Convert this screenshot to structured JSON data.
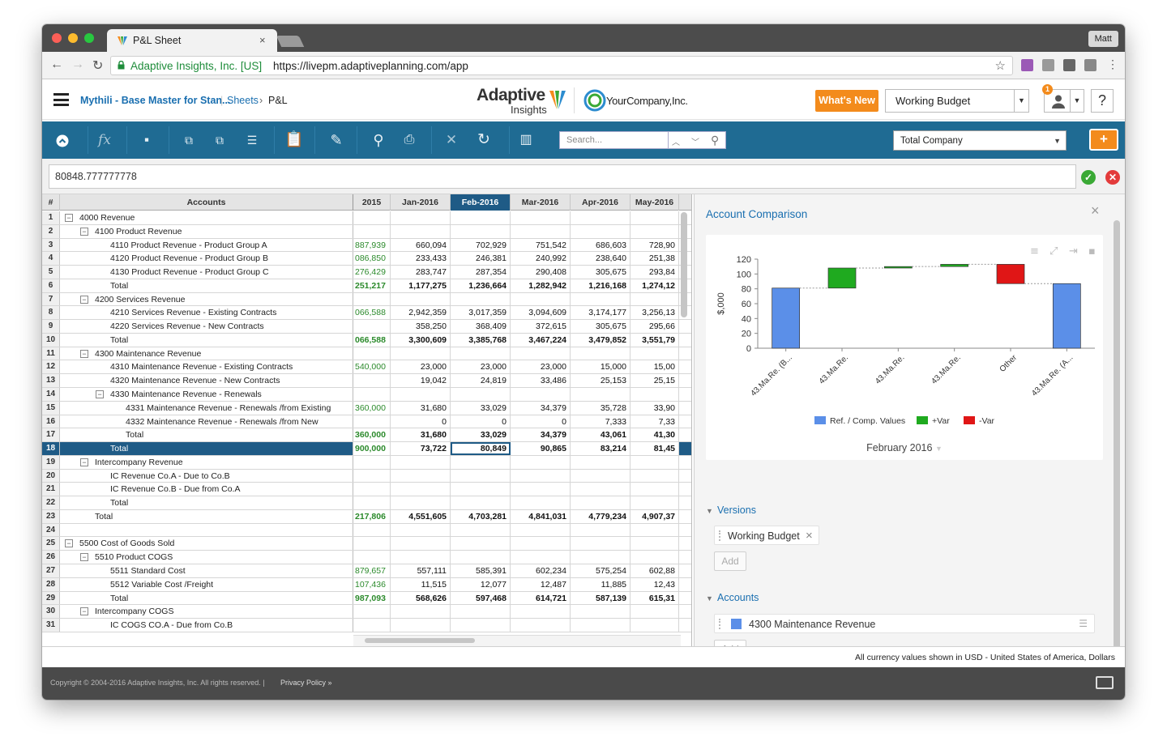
{
  "browser": {
    "tab_title": "P&L Sheet",
    "tab_close": "×",
    "user_button": "Matt",
    "secure_label": "Adaptive Insights, Inc. [US]",
    "url": "https://livepm.adaptiveplanning.com/app"
  },
  "header": {
    "breadcrumb": {
      "model": "Mythili - Base Master for Stan...",
      "sheets": "Sheets",
      "separator": "›",
      "current": "P&L"
    },
    "logo_primary": "Adaptive",
    "logo_secondary": "Insights",
    "company_logo": "YourCompany,Inc.",
    "whats_new": "What's New",
    "version": "Working Budget",
    "notification_count": "1",
    "help": "?"
  },
  "toolbar": {
    "icons": [
      "collapse-icon",
      "formula-icon",
      "save-icon",
      "copy-icon",
      "paste-icon",
      "indent-icon",
      "clipboard-icon",
      "sheet-edit-icon",
      "zoom-icon",
      "print-icon",
      "close-icon",
      "refresh-icon",
      "chart-icon"
    ],
    "search_placeholder": "Search...",
    "entity": "Total Company",
    "add": "+"
  },
  "formula_bar": {
    "value": "80848.777777778",
    "ok": "✓",
    "cancel": "✕"
  },
  "grid": {
    "row_number_header": "#",
    "accounts_header": "Accounts",
    "columns": [
      "2015",
      "Jan-2016",
      "Feb-2016",
      "Mar-2016",
      "Apr-2016",
      "May-2016"
    ],
    "selected_column": "Feb-2016",
    "rows": [
      {
        "n": "1",
        "level": 0,
        "toggle": "−",
        "label": "4000 Revenue",
        "values": [
          "",
          "",
          "",
          "",
          "",
          ""
        ]
      },
      {
        "n": "2",
        "level": 1,
        "toggle": "−",
        "label": "4100 Product Revenue",
        "values": [
          "",
          "",
          "",
          "",
          "",
          ""
        ]
      },
      {
        "n": "3",
        "level": 2,
        "label": "4110 Product Revenue - Product Group A",
        "values": [
          "887,939",
          "660,094",
          "702,929",
          "751,542",
          "686,603",
          "728,90"
        ]
      },
      {
        "n": "4",
        "level": 2,
        "label": "4120 Product Revenue - Product Group B",
        "values": [
          "086,850",
          "233,433",
          "246,381",
          "240,992",
          "238,640",
          "251,38"
        ]
      },
      {
        "n": "5",
        "level": 2,
        "label": "4130 Product Revenue - Product Group C",
        "values": [
          "276,429",
          "283,747",
          "287,354",
          "290,408",
          "305,675",
          "293,84"
        ]
      },
      {
        "n": "6",
        "level": 2,
        "total": true,
        "label": "Total",
        "values": [
          "251,217",
          "1,177,275",
          "1,236,664",
          "1,282,942",
          "1,216,168",
          "1,274,12"
        ]
      },
      {
        "n": "7",
        "level": 1,
        "toggle": "−",
        "label": "4200 Services Revenue",
        "values": [
          "",
          "",
          "",
          "",
          "",
          ""
        ]
      },
      {
        "n": "8",
        "level": 2,
        "label": "4210 Services Revenue - Existing Contracts",
        "values": [
          "066,588",
          "2,942,359",
          "3,017,359",
          "3,094,609",
          "3,174,177",
          "3,256,13"
        ]
      },
      {
        "n": "9",
        "level": 2,
        "label": "4220 Services Revenue - New Contracts",
        "values": [
          "",
          "358,250",
          "368,409",
          "372,615",
          "305,675",
          "295,66"
        ]
      },
      {
        "n": "10",
        "level": 2,
        "total": true,
        "label": "Total",
        "values": [
          "066,588",
          "3,300,609",
          "3,385,768",
          "3,467,224",
          "3,479,852",
          "3,551,79"
        ]
      },
      {
        "n": "11",
        "level": 1,
        "toggle": "−",
        "label": "4300 Maintenance Revenue",
        "values": [
          "",
          "",
          "",
          "",
          "",
          ""
        ]
      },
      {
        "n": "12",
        "level": 2,
        "label": "4310 Maintenance Revenue - Existing Contracts",
        "values": [
          "540,000",
          "23,000",
          "23,000",
          "23,000",
          "15,000",
          "15,00"
        ]
      },
      {
        "n": "13",
        "level": 2,
        "label": "4320 Maintenance Revenue - New Contracts",
        "values": [
          "",
          "19,042",
          "24,819",
          "33,486",
          "25,153",
          "25,15"
        ]
      },
      {
        "n": "14",
        "level": 2,
        "toggle": "−",
        "label": "4330 Maintenance Revenue - Renewals",
        "values": [
          "",
          "",
          "",
          "",
          "",
          ""
        ]
      },
      {
        "n": "15",
        "level": 3,
        "label": "4331 Maintenance Revenue - Renewals /from Existing",
        "values": [
          "360,000",
          "31,680",
          "33,029",
          "34,379",
          "35,728",
          "33,90"
        ]
      },
      {
        "n": "16",
        "level": 3,
        "label": "4332 Maintenance Revenue - Renewals /from New",
        "values": [
          "",
          "0",
          "0",
          "0",
          "7,333",
          "7,33"
        ]
      },
      {
        "n": "17",
        "level": 3,
        "total": true,
        "label": "Total",
        "values": [
          "360,000",
          "31,680",
          "33,029",
          "34,379",
          "43,061",
          "41,30"
        ]
      },
      {
        "n": "18",
        "level": 2,
        "total": true,
        "selected": true,
        "label": "Total",
        "values": [
          "900,000",
          "73,722",
          "80,849",
          "90,865",
          "83,214",
          "81,45"
        ]
      },
      {
        "n": "19",
        "level": 1,
        "toggle": "−",
        "label": "Intercompany Revenue",
        "values": [
          "",
          "",
          "",
          "",
          "",
          ""
        ]
      },
      {
        "n": "20",
        "level": 2,
        "label": "IC Revenue Co.A - Due to Co.B",
        "values": [
          "",
          "",
          "",
          "",
          "",
          ""
        ]
      },
      {
        "n": "21",
        "level": 2,
        "label": "IC Revenue Co.B - Due from Co.A",
        "values": [
          "",
          "",
          "",
          "",
          "",
          ""
        ]
      },
      {
        "n": "22",
        "level": 2,
        "total": true,
        "label": "Total",
        "values": [
          "",
          "",
          "",
          "",
          "",
          ""
        ]
      },
      {
        "n": "23",
        "level": 1,
        "total": true,
        "label": "Total",
        "values": [
          "217,806",
          "4,551,605",
          "4,703,281",
          "4,841,031",
          "4,779,234",
          "4,907,37"
        ]
      },
      {
        "n": "24",
        "level": 0,
        "label": "",
        "values": [
          "",
          "",
          "",
          "",
          "",
          ""
        ]
      },
      {
        "n": "25",
        "level": 0,
        "toggle": "−",
        "label": "5500 Cost of Goods Sold",
        "values": [
          "",
          "",
          "",
          "",
          "",
          ""
        ]
      },
      {
        "n": "26",
        "level": 1,
        "toggle": "−",
        "label": "5510 Product COGS",
        "values": [
          "",
          "",
          "",
          "",
          "",
          ""
        ]
      },
      {
        "n": "27",
        "level": 2,
        "label": "5511 Standard Cost",
        "values": [
          "879,657",
          "557,111",
          "585,391",
          "602,234",
          "575,254",
          "602,88"
        ]
      },
      {
        "n": "28",
        "level": 2,
        "label": "5512 Variable Cost /Freight",
        "values": [
          "107,436",
          "11,515",
          "12,077",
          "12,487",
          "11,885",
          "12,43"
        ]
      },
      {
        "n": "29",
        "level": 2,
        "total": true,
        "label": "Total",
        "values": [
          "987,093",
          "568,626",
          "597,468",
          "614,721",
          "587,139",
          "615,31"
        ]
      },
      {
        "n": "30",
        "level": 1,
        "toggle": "−",
        "label": "Intercompany COGS",
        "values": [
          "",
          "",
          "",
          "",
          "",
          ""
        ]
      },
      {
        "n": "31",
        "level": 2,
        "label": "IC COGS CO.A - Due from Co.B",
        "values": [
          "",
          "",
          "",
          "",
          "",
          ""
        ]
      }
    ]
  },
  "panel": {
    "title": "Account Comparison",
    "close": "×",
    "chart_footer": "February 2016",
    "versions_label": "Versions",
    "version_chip": "Working Budget",
    "version_chip_remove": "×",
    "accounts_label": "Accounts",
    "account_chip": "4300 Maintenance Revenue",
    "add_label": "Add"
  },
  "chart_data": {
    "type": "bar",
    "ylabel": "$,000",
    "ylim": [
      0,
      120
    ],
    "yticks": [
      0,
      20,
      40,
      60,
      80,
      100,
      120
    ],
    "categories": [
      "43.Ma.Re. (B...",
      "43.Ma.Re.",
      "43.Ma.Re.",
      "43.Ma.Re.",
      "Other",
      "43.Ma.Re. (A..."
    ],
    "bars": [
      {
        "kind": "ref",
        "start": 0,
        "end": 81
      },
      {
        "kind": "plus",
        "start": 81,
        "end": 108
      },
      {
        "kind": "plus",
        "start": 108,
        "end": 110
      },
      {
        "kind": "plus",
        "start": 110,
        "end": 113
      },
      {
        "kind": "minus",
        "start": 113,
        "end": 87
      },
      {
        "kind": "ref",
        "start": 0,
        "end": 87
      }
    ],
    "legend": [
      {
        "key": "ref",
        "label": "Ref. / Comp. Values",
        "color": "#5b8fe8"
      },
      {
        "key": "plus",
        "label": "+Var",
        "color": "#1faa1f"
      },
      {
        "key": "minus",
        "label": "-Var",
        "color": "#e01616"
      }
    ]
  },
  "footer": {
    "currency_note": "All currency values shown in USD - United States of America, Dollars",
    "copyright": "Copyright © 2004-2016 Adaptive Insights, Inc. All rights reserved.  |",
    "privacy": "Privacy Policy »"
  }
}
